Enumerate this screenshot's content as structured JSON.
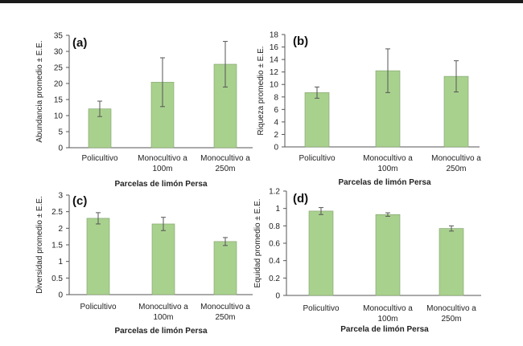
{
  "colors": {
    "bar_fill": "#a9d18e",
    "bar_stroke": "#7f9f6a",
    "axis": "#555555",
    "error": "#555555",
    "top_rule": "#1a1a1a"
  },
  "chart_data": [
    {
      "type": "bar",
      "panel": "(a)",
      "categories": [
        "Policultivo",
        "Monocultivo a 100m",
        "Monocultivo a 250m"
      ],
      "category_lines": [
        [
          "Policultivo"
        ],
        [
          "Monocultivo a",
          "100m"
        ],
        [
          "Monocultivo a",
          "250m"
        ]
      ],
      "values": [
        12.1,
        20.4,
        26.0
      ],
      "errors": [
        2.4,
        7.6,
        7.1
      ],
      "ylabel": "Abundancia promedio ± E.E.",
      "xlabel": "Parcelas de limón Persa",
      "ylim": [
        0,
        35
      ],
      "yticks": [
        0,
        5,
        10,
        15,
        20,
        25,
        30,
        35
      ]
    },
    {
      "type": "bar",
      "panel": "(b)",
      "categories": [
        "Policultivo",
        "Monocultivo a 100m",
        "Monocultivo a 250m"
      ],
      "category_lines": [
        [
          "Policultivo"
        ],
        [
          "Monocultivo a",
          "100m"
        ],
        [
          "Monocultivo a",
          "250m"
        ]
      ],
      "values": [
        8.7,
        12.2,
        11.3
      ],
      "errors": [
        0.9,
        3.5,
        2.5
      ],
      "ylabel": "Riqueza promedio ± E.E.",
      "xlabel": "Parcelas de limón Persa",
      "ylim": [
        0,
        18
      ],
      "yticks": [
        0,
        2,
        4,
        6,
        8,
        10,
        12,
        14,
        16,
        18
      ]
    },
    {
      "type": "bar",
      "panel": "(c)",
      "categories": [
        "Policultivo",
        "Monocultivo a 100m",
        "Monocultivo a 250m"
      ],
      "category_lines": [
        [
          "Policultivo"
        ],
        [
          "Monocultivo a",
          "100m"
        ],
        [
          "Monocultivo a",
          "250m"
        ]
      ],
      "values": [
        2.3,
        2.13,
        1.6
      ],
      "errors": [
        0.17,
        0.2,
        0.12
      ],
      "ylabel": "Diversidad promedio ± E.E.",
      "xlabel": "Parcelas de limón Persa",
      "ylim": [
        0,
        3
      ],
      "yticks": [
        0,
        0.5,
        1,
        1.5,
        2,
        2.5,
        3
      ],
      "ytick_labels": [
        "0",
        "0.5",
        "1",
        "1.5",
        "2",
        "2.5",
        "3"
      ]
    },
    {
      "type": "bar",
      "panel": "(d)",
      "categories": [
        "Policultivo",
        "Monocultivo a 100m",
        "Monocultivo a 250m"
      ],
      "category_lines": [
        [
          "Policultivo"
        ],
        [
          "Monocultivo a",
          "100m"
        ],
        [
          "Monocultivo a",
          "250m"
        ]
      ],
      "values": [
        0.97,
        0.93,
        0.77
      ],
      "errors": [
        0.04,
        0.02,
        0.03
      ],
      "ylabel": "Equidad promedio ± E.E.",
      "xlabel": "Parcela de limón Persa",
      "ylim": [
        0,
        1.2
      ],
      "yticks": [
        0,
        0.2,
        0.4,
        0.6,
        0.8,
        1,
        1.2
      ],
      "ytick_labels": [
        "0",
        "0.2",
        "0.4",
        "0.6",
        "0.8",
        "1",
        "1.2"
      ]
    }
  ]
}
